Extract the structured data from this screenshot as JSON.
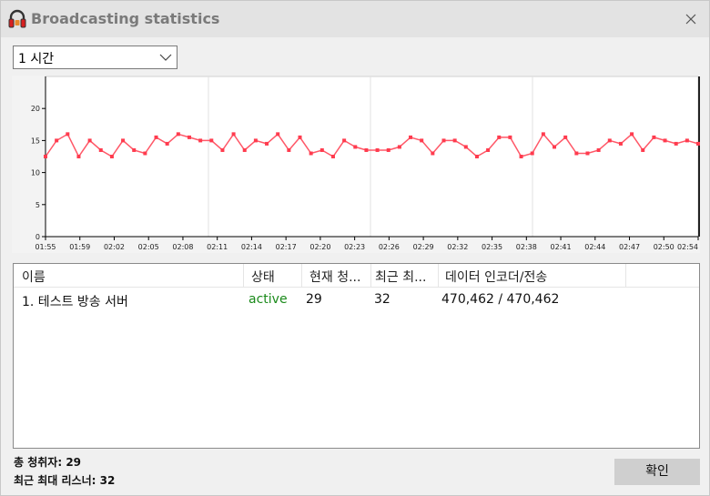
{
  "window": {
    "title": "Broadcasting statistics",
    "icon": "headphones-icon",
    "close_icon": "close-icon"
  },
  "range_select": {
    "value": "1 시간"
  },
  "chart_data": {
    "type": "line",
    "title": "",
    "xlabel": "",
    "ylabel": "",
    "ylim": [
      0,
      25
    ],
    "yticks": [
      0,
      5,
      10,
      15,
      20
    ],
    "grid": true,
    "line_color": "#ff3b4e",
    "x_ticks": [
      "01:55",
      "01:59",
      "02:02",
      "02:05",
      "02:08",
      "02:11",
      "02:14",
      "02:17",
      "02:20",
      "02:23",
      "02:26",
      "02:29",
      "02:32",
      "02:35",
      "02:38",
      "02:41",
      "02:44",
      "02:47",
      "02:50",
      "02:54"
    ],
    "series": [
      {
        "values": [
          12.5,
          15,
          16,
          12.5,
          15,
          13.5,
          12.5,
          15,
          13.5,
          13,
          15.5,
          14.5,
          16,
          15.5,
          15,
          15,
          13.5,
          16,
          13.5,
          15,
          14.5,
          16,
          13.5,
          15.5,
          13,
          13.5,
          12.5,
          15,
          14,
          13.5,
          13.5,
          13.5,
          14,
          15.5,
          15,
          13,
          15,
          15,
          14,
          12.5,
          13.5,
          15.5,
          15.5,
          12.5,
          13,
          16,
          14,
          15.5,
          13,
          13,
          13.5,
          15,
          14.5,
          16,
          13.5,
          15.5,
          15,
          14.5,
          15,
          14.5
        ]
      }
    ]
  },
  "list": {
    "columns": [
      "이름",
      "상태",
      "현재 청...",
      "최근 최...",
      "데이터 인코더/전송"
    ],
    "rows": [
      {
        "name": "1. 테스트 방송 서버",
        "status": "active",
        "current_listeners": "29",
        "peak_listeners": "32",
        "data": "470,462 / 470,462"
      }
    ]
  },
  "stats": {
    "total_listeners_label": "총 청취자:",
    "total_listeners": "29",
    "peak_listeners_label": "최근 최대 리스너:",
    "peak_listeners": "32"
  },
  "ok_button": {
    "label": "확인"
  }
}
